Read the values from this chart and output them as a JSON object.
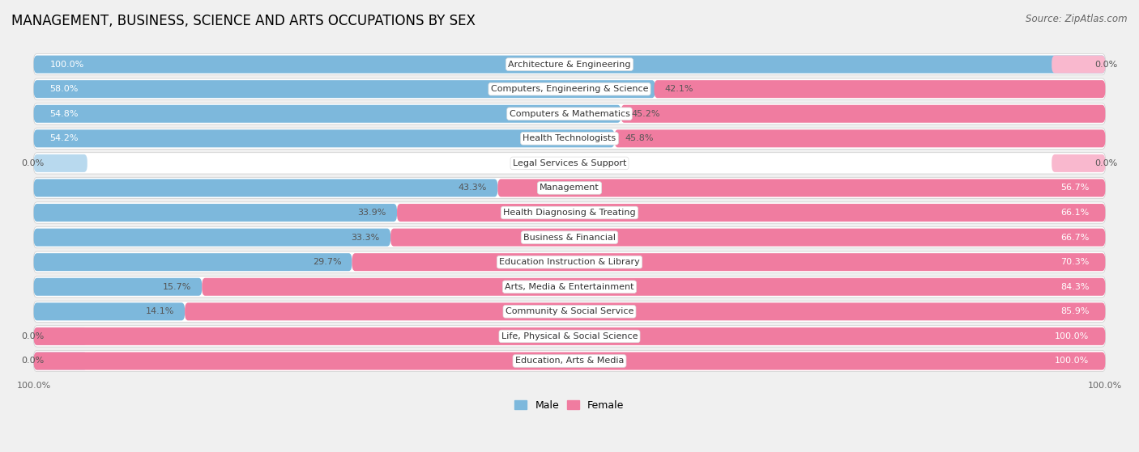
{
  "title": "MANAGEMENT, BUSINESS, SCIENCE AND ARTS OCCUPATIONS BY SEX",
  "source": "Source: ZipAtlas.com",
  "categories": [
    "Architecture & Engineering",
    "Computers, Engineering & Science",
    "Computers & Mathematics",
    "Health Technologists",
    "Legal Services & Support",
    "Management",
    "Health Diagnosing & Treating",
    "Business & Financial",
    "Education Instruction & Library",
    "Arts, Media & Entertainment",
    "Community & Social Service",
    "Life, Physical & Social Science",
    "Education, Arts & Media"
  ],
  "male": [
    100.0,
    58.0,
    54.8,
    54.2,
    0.0,
    43.3,
    33.9,
    33.3,
    29.7,
    15.7,
    14.1,
    0.0,
    0.0
  ],
  "female": [
    0.0,
    42.1,
    45.2,
    45.8,
    0.0,
    56.7,
    66.1,
    66.7,
    70.3,
    84.3,
    85.9,
    100.0,
    100.0
  ],
  "male_color": "#7db8dc",
  "female_color": "#f07ca0",
  "male_color_light": "#b8d9ee",
  "female_color_light": "#f9b8ce",
  "male_label": "Male",
  "female_label": "Female",
  "bg_color": "#f0f0f0",
  "row_bg_color": "#ffffff",
  "title_fontsize": 12,
  "source_fontsize": 8.5,
  "label_fontsize": 8,
  "pct_fontsize": 8,
  "legend_fontsize": 9
}
